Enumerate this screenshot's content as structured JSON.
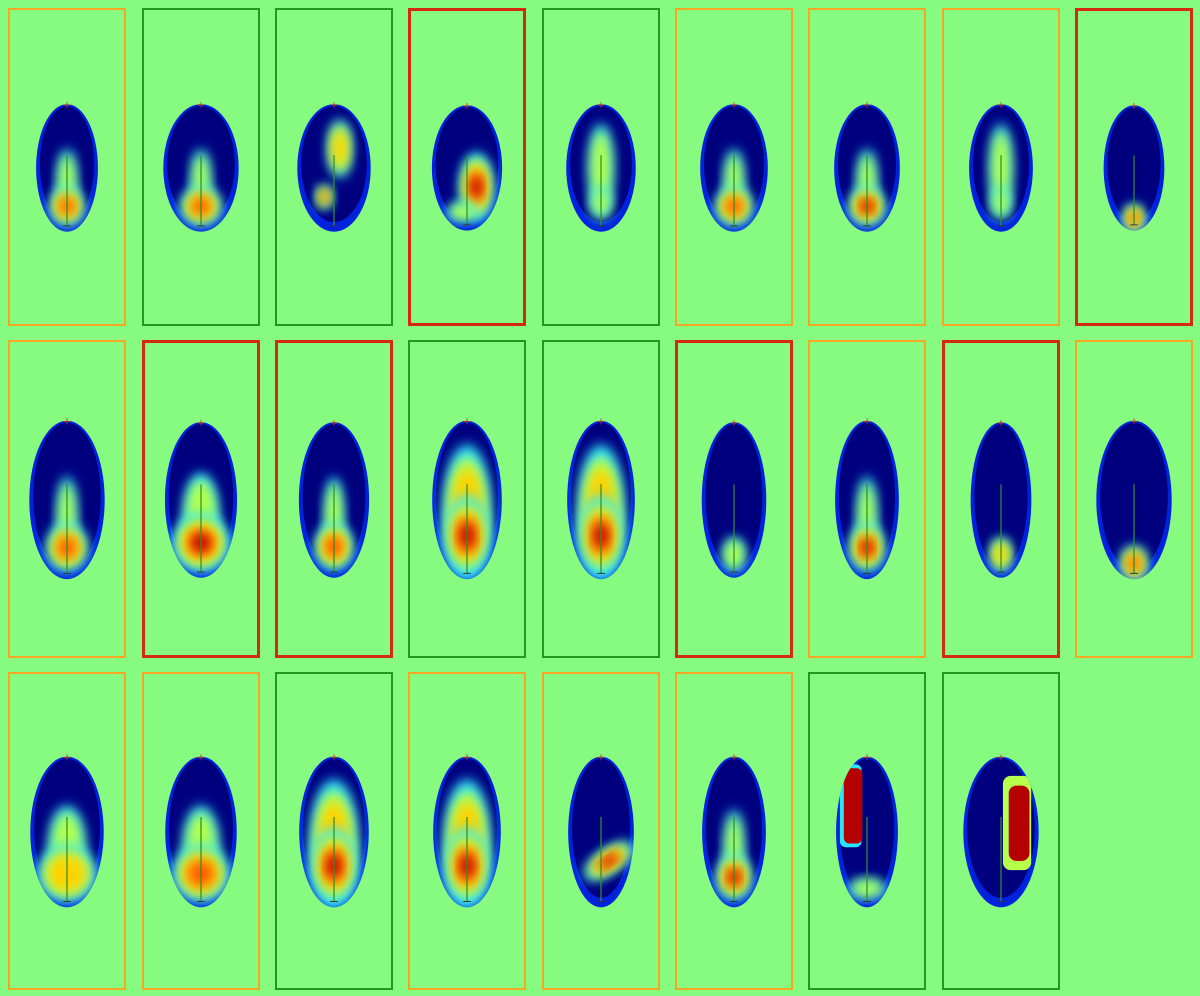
{
  "colors": {
    "background": "#86fb80",
    "frame_orange": "#f5a623",
    "frame_green": "#1f9a1f",
    "frame_red": "#d42a12",
    "axis_line": "#2f8f2f",
    "marker": "#cc3311",
    "colormap": [
      "#00007f",
      "#0022dd",
      "#0088ff",
      "#29e6ff",
      "#b6ff4a",
      "#ffd200",
      "#ff5a00",
      "#b40000"
    ]
  },
  "grid": {
    "rows": 3,
    "columns": 9,
    "panels": [
      {
        "frame": "orange",
        "hotspot": "bottom",
        "intensity": 0.7
      },
      {
        "frame": "green",
        "hotspot": "bottom",
        "intensity": 0.85
      },
      {
        "frame": "green",
        "hotspot": "spotty",
        "intensity": 0.55
      },
      {
        "frame": "red",
        "hotspot": "right-bar",
        "intensity": 0.95
      },
      {
        "frame": "green",
        "hotspot": "center",
        "intensity": 0.6
      },
      {
        "frame": "orange",
        "hotspot": "bottom",
        "intensity": 0.7
      },
      {
        "frame": "orange",
        "hotspot": "bottom",
        "intensity": 0.9
      },
      {
        "frame": "orange",
        "hotspot": "center",
        "intensity": 0.6
      },
      {
        "frame": "red",
        "hotspot": "tail",
        "intensity": 0.75
      },
      {
        "frame": "orange",
        "hotspot": "bottom",
        "intensity": 0.7
      },
      {
        "frame": "red",
        "hotspot": "bottom-wide",
        "intensity": 0.95
      },
      {
        "frame": "red",
        "hotspot": "bottom",
        "intensity": 0.75
      },
      {
        "frame": "green",
        "hotspot": "full",
        "intensity": 1.0
      },
      {
        "frame": "green",
        "hotspot": "full",
        "intensity": 1.0
      },
      {
        "frame": "red",
        "hotspot": "tail-faint",
        "intensity": 0.4
      },
      {
        "frame": "orange",
        "hotspot": "bottom",
        "intensity": 0.9
      },
      {
        "frame": "red",
        "hotspot": "tail-faint",
        "intensity": 0.5
      },
      {
        "frame": "orange",
        "hotspot": "tail",
        "intensity": 0.75
      },
      {
        "frame": "orange",
        "hotspot": "bottom-wide",
        "intensity": 0.65
      },
      {
        "frame": "orange",
        "hotspot": "bottom-wide",
        "intensity": 0.85
      },
      {
        "frame": "green",
        "hotspot": "full",
        "intensity": 0.9
      },
      {
        "frame": "orange",
        "hotspot": "full",
        "intensity": 0.95
      },
      {
        "frame": "orange",
        "hotspot": "diagonal",
        "intensity": 0.8
      },
      {
        "frame": "orange",
        "hotspot": "bottom",
        "intensity": 0.9
      },
      {
        "frame": "green",
        "hotspot": "left-block",
        "intensity": 1.0
      },
      {
        "frame": "green",
        "hotspot": "right-block",
        "intensity": 1.0
      }
    ]
  }
}
